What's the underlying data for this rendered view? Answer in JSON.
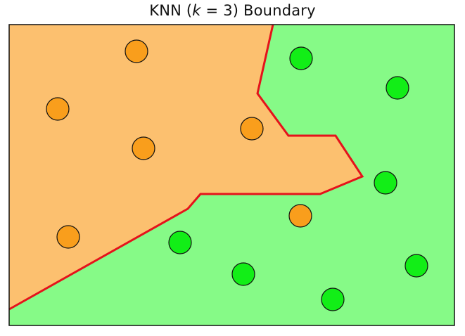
{
  "title": {
    "prefix": "KNN (",
    "k_symbol": "k",
    "suffix": " = 3) Boundary"
  },
  "colors": {
    "orange_region": "#fcc06f",
    "green_region": "#86fa87",
    "boundary_line": "#e5121b",
    "orange_point": "#f99e1c",
    "green_point": "#12ee17",
    "frame": "#111111"
  },
  "classes": [
    "orange",
    "green"
  ],
  "points": [
    {
      "class": "orange"
    },
    {
      "class": "orange"
    },
    {
      "class": "orange"
    },
    {
      "class": "orange"
    },
    {
      "class": "orange"
    },
    {
      "class": "orange"
    },
    {
      "class": "green"
    },
    {
      "class": "green"
    },
    {
      "class": "green"
    },
    {
      "class": "green"
    },
    {
      "class": "green"
    },
    {
      "class": "green"
    },
    {
      "class": "green"
    }
  ]
}
